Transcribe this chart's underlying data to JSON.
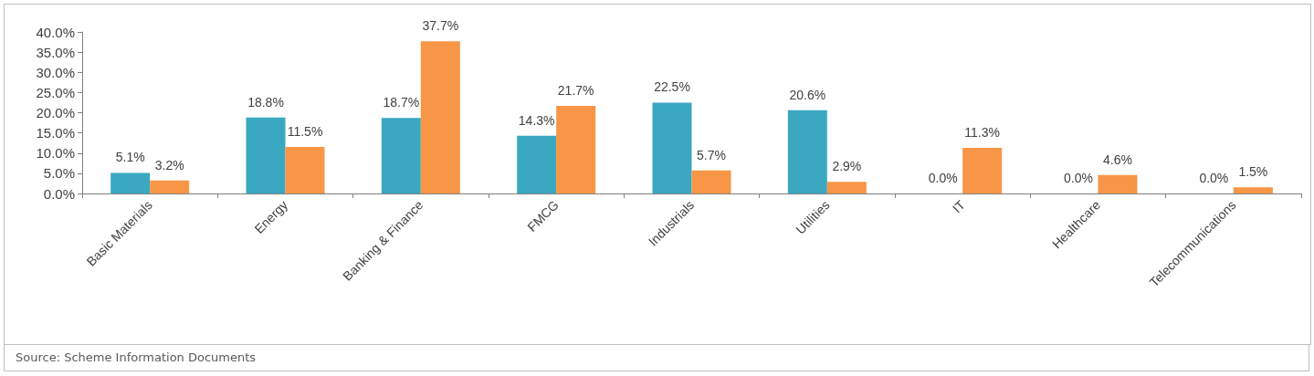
{
  "chart_data": {
    "type": "bar",
    "categories": [
      "Basic Materials",
      "Energy",
      "Banking & Finance",
      "FMCG",
      "Industrials",
      "Utilities",
      "IT",
      "Healthcare",
      "Telecommunications"
    ],
    "series": [
      {
        "color": "#3aa8c1",
        "values": [
          5.1,
          18.8,
          18.7,
          14.3,
          22.5,
          20.6,
          0.0,
          0.0,
          0.0
        ],
        "value_labels": [
          "5.1%",
          "18.8%",
          "18.7%",
          "14.3%",
          "22.5%",
          "20.6%",
          "0.0%",
          "0.0%",
          "0.0%"
        ]
      },
      {
        "color": "#f79646",
        "values": [
          3.2,
          11.5,
          37.7,
          21.7,
          5.7,
          2.9,
          11.3,
          4.6,
          1.5
        ],
        "value_labels": [
          "3.2%",
          "11.5%",
          "37.7%",
          "21.7%",
          "5.7%",
          "2.9%",
          "11.3%",
          "4.6%",
          "1.5%"
        ]
      }
    ],
    "ylim": [
      0,
      40
    ],
    "yticks": [
      {
        "value": 0,
        "label": "0.0%"
      },
      {
        "value": 5,
        "label": "5.0%"
      },
      {
        "value": 10,
        "label": "10.0%"
      },
      {
        "value": 15,
        "label": "15.0%"
      },
      {
        "value": 20,
        "label": "20.0%"
      },
      {
        "value": 25,
        "label": "25.0%"
      },
      {
        "value": 30,
        "label": "30.0%"
      },
      {
        "value": 35,
        "label": "35.0%"
      },
      {
        "value": 40,
        "label": "40.0%"
      }
    ],
    "grid": false,
    "annotations": [
      "Source: Scheme Information Documents"
    ]
  }
}
